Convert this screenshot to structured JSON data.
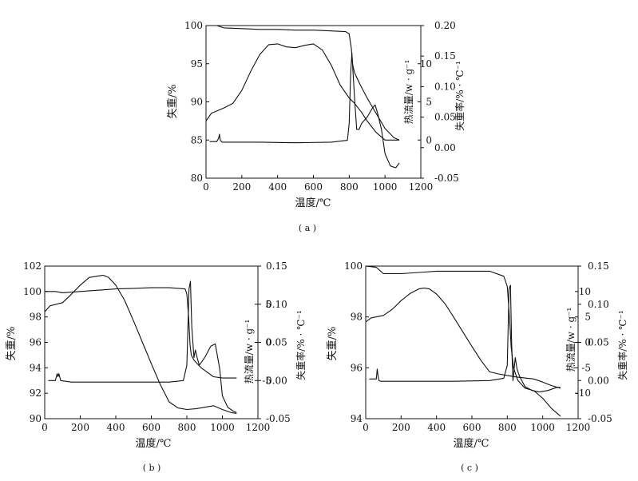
{
  "chart_data": [
    {
      "type": "line",
      "caption": "( a )",
      "xlabel": "温度/℃",
      "ylabel_left": "失重/%",
      "ylabel_right1": "热流量/w · g⁻¹",
      "ylabel_right2": "失重率/% · ℃⁻¹",
      "xlim": [
        0,
        1200
      ],
      "x_ticks": [
        0,
        200,
        400,
        600,
        800,
        1000,
        1200
      ],
      "ylim_left": [
        80,
        100
      ],
      "y_left_ticks": [
        80,
        85,
        90,
        95,
        100
      ],
      "ylim_right1": [
        -5,
        15
      ],
      "y_right1_ticks": [
        0,
        5,
        10
      ],
      "ylim_right2": [
        -0.05,
        0.2
      ],
      "y_right2_ticks": [
        -0.05,
        0.0,
        0.05,
        0.1,
        0.15,
        0.2
      ],
      "series": [
        {
          "axis": "left",
          "color": "#111111",
          "x": [
            0,
            60,
            100,
            200,
            300,
            400,
            500,
            600,
            700,
            780,
            800,
            812,
            820,
            830,
            840,
            860,
            900,
            950,
            1000,
            1050,
            1080
          ],
          "y": [
            100,
            100,
            99.7,
            99.6,
            99.5,
            99.5,
            99.4,
            99.4,
            99.3,
            99.2,
            98.9,
            97.0,
            94.8,
            93.8,
            93.3,
            92.3,
            90.5,
            88.5,
            86.5,
            85.3,
            85.0
          ]
        },
        {
          "axis": "right1",
          "color": "#111111",
          "x": [
            0,
            30,
            100,
            150,
            200,
            250,
            300,
            350,
            400,
            450,
            500,
            550,
            600,
            650,
            700,
            750,
            800,
            830,
            850,
            870,
            900,
            950,
            1000,
            1050,
            1080
          ],
          "y": [
            2.5,
            3.5,
            4.2,
            4.8,
            6.5,
            9.0,
            11.2,
            12.5,
            12.6,
            12.2,
            12.1,
            12.4,
            12.6,
            11.8,
            9.8,
            7.2,
            5.5,
            4.8,
            4.2,
            3.6,
            2.5,
            1.0,
            0.0,
            0.0,
            0.0
          ]
        },
        {
          "axis": "right2",
          "color": "#111111",
          "x": [
            20,
            60,
            70,
            75,
            80,
            90,
            150,
            300,
            500,
            700,
            790,
            800,
            808,
            815,
            820,
            830,
            842,
            855,
            870,
            900,
            930,
            945,
            960,
            980,
            1000,
            1030,
            1060,
            1080
          ],
          "y": [
            0.01,
            0.01,
            0.015,
            0.022,
            0.012,
            0.009,
            0.009,
            0.009,
            0.008,
            0.009,
            0.012,
            0.04,
            0.12,
            0.155,
            0.13,
            0.08,
            0.03,
            0.03,
            0.04,
            0.05,
            0.065,
            0.07,
            0.055,
            0.03,
            -0.01,
            -0.03,
            -0.033,
            -0.025
          ]
        }
      ]
    },
    {
      "type": "line",
      "caption": "( b )",
      "xlabel": "温度/℃",
      "ylabel_left": "失重/%",
      "ylabel_right1": "热流量/w · g⁻¹",
      "ylabel_right2": "失重率/% · ℃⁻¹",
      "xlim": [
        0,
        1200
      ],
      "x_ticks": [
        0,
        200,
        400,
        600,
        800,
        1000,
        1200
      ],
      "ylim_left": [
        90,
        102
      ],
      "y_left_ticks": [
        90,
        92,
        94,
        96,
        98,
        100,
        102
      ],
      "ylim_right1": [
        -10,
        10
      ],
      "y_right1_ticks": [
        -5,
        0,
        5
      ],
      "ylim_right2": [
        -0.05,
        0.15
      ],
      "y_right2_ticks": [
        -0.05,
        0.0,
        0.05,
        0.1,
        0.15
      ],
      "series": [
        {
          "axis": "left",
          "color": "#111111",
          "x": [
            0,
            60,
            100,
            200,
            300,
            400,
            500,
            600,
            700,
            790,
            800,
            810,
            818,
            825,
            840,
            880,
            950,
            1000,
            1050,
            1080
          ],
          "y": [
            100,
            100,
            99.9,
            100.0,
            100.1,
            100.2,
            100.25,
            100.3,
            100.3,
            100.2,
            99.8,
            98.0,
            95.8,
            95.0,
            94.6,
            94.0,
            93.3,
            93.2,
            93.2,
            93.2
          ]
        },
        {
          "axis": "right1",
          "color": "#111111",
          "x": [
            0,
            30,
            100,
            150,
            200,
            250,
            300,
            330,
            360,
            400,
            450,
            500,
            550,
            600,
            650,
            700,
            750,
            800,
            850,
            900,
            950,
            1000,
            1050,
            1080
          ],
          "y": [
            4.0,
            4.8,
            5.2,
            6.3,
            7.5,
            8.5,
            8.7,
            8.8,
            8.5,
            7.5,
            5.5,
            2.8,
            0.0,
            -2.8,
            -5.5,
            -7.8,
            -8.6,
            -8.8,
            -8.7,
            -8.5,
            -8.3,
            -8.8,
            -9.2,
            -9.3
          ]
        },
        {
          "axis": "right2",
          "color": "#111111",
          "x": [
            20,
            60,
            70,
            75,
            80,
            90,
            150,
            300,
            500,
            700,
            780,
            800,
            812,
            820,
            828,
            840,
            848,
            858,
            870,
            900,
            935,
            960,
            985,
            1000,
            1030,
            1060,
            1080
          ],
          "y": [
            0.0,
            0.0,
            0.009,
            0.005,
            0.009,
            0.0,
            -0.002,
            -0.002,
            -0.002,
            -0.002,
            0.0,
            0.02,
            0.12,
            0.13,
            0.07,
            0.03,
            0.04,
            0.03,
            0.02,
            0.03,
            0.045,
            0.048,
            0.015,
            -0.02,
            -0.035,
            -0.04,
            -0.042
          ]
        }
      ]
    },
    {
      "type": "line",
      "caption": "( c )",
      "xlabel": "温度/℃",
      "ylabel_left": "失重/%",
      "ylabel_right1": "热流量/w · g⁻¹",
      "ylabel_right2": "失重率/% · ℃⁻¹",
      "xlim": [
        0,
        1200
      ],
      "x_ticks": [
        0,
        200,
        400,
        600,
        800,
        1000,
        1200
      ],
      "ylim_left": [
        94,
        100
      ],
      "y_left_ticks": [
        94,
        96,
        98,
        100
      ],
      "ylim_right1": [
        -15,
        15
      ],
      "y_right1_ticks": [
        -10,
        -5,
        0,
        5,
        10
      ],
      "ylim_right2": [
        -0.05,
        0.15
      ],
      "y_right2_ticks": [
        -0.05,
        0.0,
        0.05,
        0.1,
        0.15
      ],
      "series": [
        {
          "axis": "left",
          "color": "#111111",
          "x": [
            0,
            60,
            100,
            200,
            300,
            400,
            500,
            600,
            700,
            780,
            800,
            812,
            822,
            835,
            860,
            900,
            950,
            1000,
            1050,
            1100
          ],
          "y": [
            100,
            99.95,
            99.7,
            99.7,
            99.75,
            99.8,
            99.8,
            99.8,
            99.8,
            99.6,
            99.2,
            98.0,
            96.8,
            96.0,
            95.5,
            95.2,
            95.1,
            94.8,
            94.4,
            94.1
          ]
        },
        {
          "axis": "right1",
          "color": "#111111",
          "x": [
            0,
            30,
            100,
            150,
            200,
            250,
            300,
            330,
            360,
            400,
            450,
            500,
            550,
            600,
            650,
            700,
            750,
            800,
            850,
            900,
            950,
            1000,
            1050,
            1100
          ],
          "y": [
            4.0,
            4.8,
            5.3,
            6.5,
            8.2,
            9.6,
            10.5,
            10.7,
            10.5,
            9.5,
            7.5,
            4.8,
            2.0,
            -0.8,
            -3.5,
            -5.8,
            -6.2,
            -6.5,
            -6.8,
            -7.0,
            -7.2,
            -7.8,
            -8.5,
            -9.0
          ]
        },
        {
          "axis": "right2",
          "color": "#111111",
          "x": [
            20,
            60,
            65,
            70,
            75,
            85,
            150,
            300,
            500,
            700,
            780,
            800,
            810,
            818,
            824,
            832,
            845,
            855,
            870,
            900,
            940,
            980,
            1030,
            1080,
            1100
          ],
          "y": [
            0.002,
            0.002,
            0.015,
            0.006,
            0.0,
            -0.001,
            -0.001,
            -0.001,
            -0.001,
            0.0,
            0.003,
            0.02,
            0.12,
            0.125,
            0.05,
            0.0,
            0.03,
            0.015,
            0.005,
            -0.008,
            -0.013,
            -0.015,
            -0.013,
            -0.009,
            -0.009
          ]
        }
      ]
    }
  ]
}
